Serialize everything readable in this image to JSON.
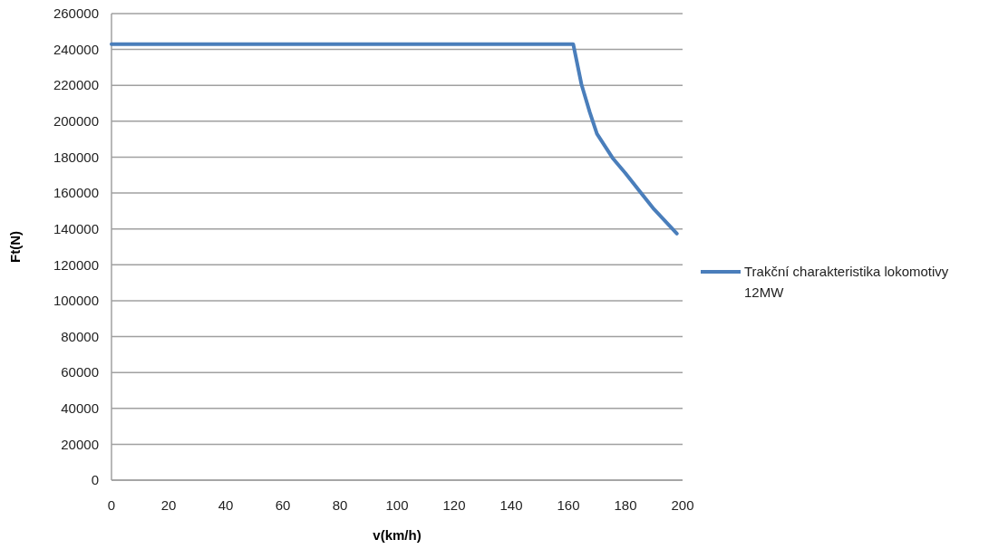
{
  "chart_data": {
    "type": "line",
    "xlabel": "v(km/h)",
    "ylabel": "Ft(N)",
    "xlim": [
      0,
      200
    ],
    "xticks": [
      0,
      20,
      40,
      60,
      80,
      100,
      120,
      140,
      160,
      180,
      200
    ],
    "ylim": [
      0,
      260000
    ],
    "yticks": [
      0,
      20000,
      40000,
      60000,
      80000,
      100000,
      120000,
      140000,
      160000,
      180000,
      200000,
      220000,
      240000,
      260000
    ],
    "grid": "y",
    "legend": "right",
    "series": [
      {
        "name": "Trakční charakteristika lokomotivy 12MW",
        "color": "#4a7ebb",
        "x": [
          0,
          40,
          80,
          120,
          161.7,
          164.6,
          167.5,
          170,
          175.5,
          180,
          185.2,
          190,
          198
        ],
        "values": [
          243000,
          243000,
          243000,
          243000,
          243000,
          220500,
          205000,
          193000,
          179500,
          171000,
          160500,
          151000,
          137400
        ]
      }
    ]
  }
}
